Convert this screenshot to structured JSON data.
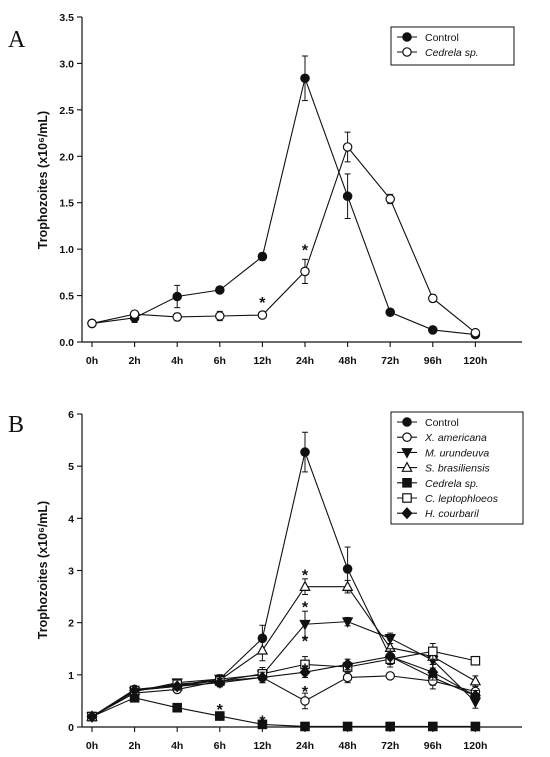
{
  "chart_data": [
    {
      "panel": "A",
      "type": "line",
      "ylabel": "Trophozoites (x10⁶/mL)",
      "categories": [
        "0h",
        "2h",
        "4h",
        "6h",
        "12h",
        "24h",
        "48h",
        "72h",
        "96h",
        "120h"
      ],
      "ylim": [
        0,
        3.5
      ],
      "yticks": [
        "0.0",
        "0.5",
        "1.0",
        "1.5",
        "2.0",
        "2.5",
        "3.0",
        "3.5"
      ],
      "legend_position": "top-right",
      "series": [
        {
          "name": "Control",
          "marker": "circle-filled",
          "italic": false,
          "values": [
            0.2,
            0.26,
            0.49,
            0.56,
            0.92,
            2.84,
            1.57,
            0.32,
            0.13,
            0.08
          ],
          "errors": [
            0.02,
            0.05,
            0.12,
            0.03,
            0.04,
            0.24,
            0.24,
            0.03,
            0.02,
            0.02
          ]
        },
        {
          "name": "Cedrela sp.",
          "marker": "circle-open",
          "italic": true,
          "values": [
            0.2,
            0.3,
            0.27,
            0.28,
            0.29,
            0.76,
            2.1,
            1.54,
            0.47,
            0.1
          ],
          "errors": [
            0.02,
            0.03,
            0.04,
            0.05,
            0.02,
            0.13,
            0.16,
            0.05,
            0.04,
            0.02
          ]
        }
      ],
      "annotations": [
        {
          "text": "*",
          "x": "12h",
          "y": 0.45
        },
        {
          "text": "*",
          "x": "24h",
          "y": 1.02
        }
      ]
    },
    {
      "panel": "B",
      "type": "line",
      "ylabel": "Trophozoites (x10⁶/mL)",
      "categories": [
        "0h",
        "2h",
        "4h",
        "6h",
        "12h",
        "24h",
        "48h",
        "72h",
        "96h",
        "120h"
      ],
      "ylim": [
        0,
        6
      ],
      "yticks": [
        "0",
        "1",
        "2",
        "3",
        "4",
        "5",
        "6"
      ],
      "legend_position": "top-right",
      "series": [
        {
          "name": "Control",
          "marker": "circle-filled",
          "italic": false,
          "values": [
            0.2,
            0.72,
            0.8,
            0.92,
            1.7,
            5.27,
            3.03,
            1.35,
            0.95,
            0.6
          ],
          "errors": [
            0.02,
            0.05,
            0.05,
            0.08,
            0.25,
            0.38,
            0.42,
            0.15,
            0.15,
            0.1
          ]
        },
        {
          "name": "X. americana",
          "marker": "circle-open",
          "italic": true,
          "values": [
            0.2,
            0.65,
            0.72,
            0.88,
            0.95,
            0.5,
            0.95,
            0.98,
            0.88,
            0.68
          ],
          "errors": [
            0.02,
            0.05,
            0.05,
            0.1,
            0.1,
            0.15,
            0.1,
            0.05,
            0.15,
            0.1
          ]
        },
        {
          "name": "M. urundeuva",
          "marker": "triangle-down-filled",
          "italic": true,
          "values": [
            0.2,
            0.68,
            0.85,
            0.92,
            1.0,
            1.97,
            2.02,
            1.7,
            1.28,
            0.48
          ],
          "errors": [
            0.02,
            0.05,
            0.05,
            0.08,
            0.08,
            0.25,
            0.08,
            0.1,
            0.15,
            0.12
          ]
        },
        {
          "name": "S. brasiliensis",
          "marker": "triangle-up-open",
          "italic": true,
          "values": [
            0.2,
            0.7,
            0.78,
            0.9,
            1.47,
            2.69,
            2.69,
            1.52,
            1.35,
            0.88
          ],
          "errors": [
            0.02,
            0.05,
            0.05,
            0.08,
            0.2,
            0.15,
            0.12,
            0.15,
            0.15,
            0.1
          ]
        },
        {
          "name": "Cedrela sp.",
          "marker": "square-filled",
          "italic": true,
          "values": [
            0.2,
            0.56,
            0.37,
            0.21,
            0.05,
            0.01,
            0.01,
            0.01,
            0.01,
            0.01
          ],
          "errors": [
            0.02,
            0.05,
            0.05,
            0.03,
            0.02,
            0.01,
            0.01,
            0.01,
            0.01,
            0.01
          ]
        },
        {
          "name": "C. leptophloeos",
          "marker": "square-open",
          "italic": true,
          "values": [
            0.2,
            0.7,
            0.82,
            0.88,
            1.02,
            1.2,
            1.15,
            1.3,
            1.45,
            1.27
          ],
          "errors": [
            0.02,
            0.05,
            0.05,
            0.1,
            0.12,
            0.15,
            0.1,
            0.15,
            0.15,
            0.05
          ]
        },
        {
          "name": "H. courbaril",
          "marker": "diamond-filled",
          "italic": true,
          "values": [
            0.2,
            0.7,
            0.78,
            0.85,
            0.95,
            1.05,
            1.2,
            1.35,
            1.05,
            0.6
          ],
          "errors": [
            0.02,
            0.05,
            0.05,
            0.08,
            0.1,
            0.1,
            0.1,
            0.15,
            0.15,
            0.1
          ]
        }
      ],
      "annotations": [
        {
          "text": "*",
          "x": "6h",
          "y": 0.38
        },
        {
          "text": "*",
          "x": "12h",
          "y": 0.16
        },
        {
          "text": "*",
          "x": "24h",
          "y": 2.96
        },
        {
          "text": "*",
          "x": "24h",
          "y": 2.35
        },
        {
          "text": "*",
          "x": "24h",
          "y": 1.7
        },
        {
          "text": "*",
          "x": "24h",
          "y": 1.16
        },
        {
          "text": "*",
          "x": "24h",
          "y": 0.73
        }
      ]
    }
  ]
}
